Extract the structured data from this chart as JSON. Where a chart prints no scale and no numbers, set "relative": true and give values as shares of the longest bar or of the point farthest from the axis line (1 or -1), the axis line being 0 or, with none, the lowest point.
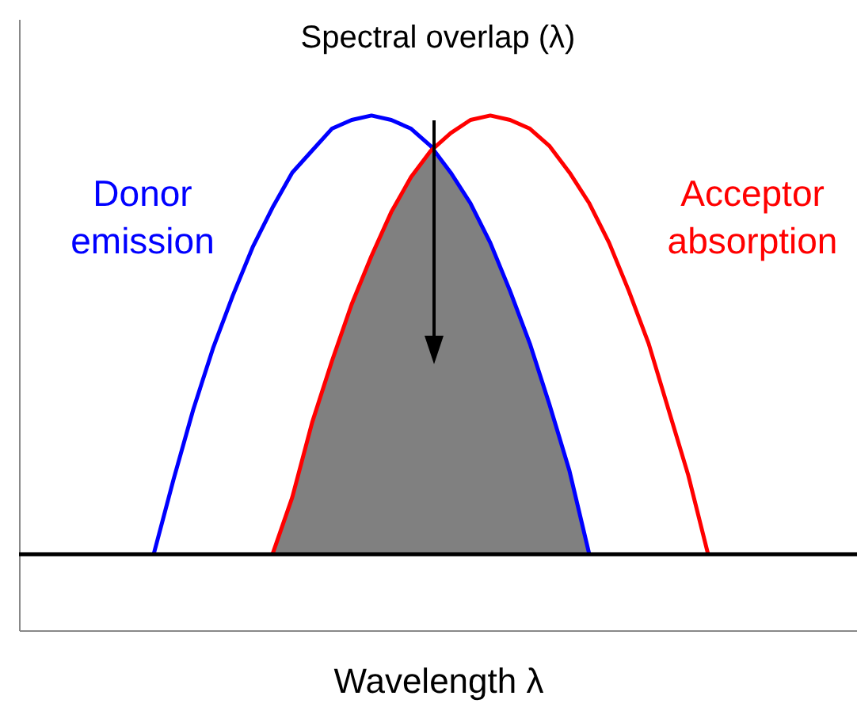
{
  "chart_data": {
    "type": "line",
    "title": "Spectral overlap (λ)",
    "xlabel": "Wavelength λ",
    "relative": true,
    "legend": false,
    "grid": false,
    "marker": "none",
    "line_style": "solid",
    "categories": [
      null,
      null,
      null,
      null,
      null,
      null,
      null,
      null,
      null,
      null,
      null,
      null,
      null,
      null,
      null,
      null,
      null,
      null,
      null,
      null,
      null,
      null,
      null,
      null,
      null,
      null,
      null,
      null,
      null
    ],
    "series": [
      {
        "type": "area",
        "color": "#808080",
        "values": [
          null,
          null,
          null,
          null,
          null,
          null,
          0,
          0.13,
          0.3,
          0.44,
          0.57,
          0.68,
          0.78,
          0.86,
          0.92,
          0.87,
          0.8,
          0.71,
          0.6,
          0.48,
          0.34,
          0.19,
          0,
          null,
          null,
          null,
          null,
          null,
          null
        ]
      },
      {
        "name": "Donor emission",
        "color": "#0000ff",
        "values": [
          0,
          0.17,
          0.33,
          0.47,
          0.59,
          0.7,
          0.79,
          0.87,
          0.92,
          0.97,
          0.99,
          1,
          0.99,
          0.97,
          0.93,
          0.87,
          0.8,
          0.71,
          0.6,
          0.48,
          0.34,
          0.19,
          0,
          null,
          null,
          null,
          null,
          null,
          null
        ]
      },
      {
        "name": "Acceptor absorption",
        "color": "#ff0000",
        "values": [
          null,
          null,
          null,
          null,
          null,
          null,
          0,
          0.13,
          0.3,
          0.44,
          0.57,
          0.68,
          0.78,
          0.86,
          0.92,
          0.96,
          0.99,
          1,
          0.99,
          0.97,
          0.93,
          0.87,
          0.8,
          0.71,
          0.6,
          0.48,
          0.33,
          0.18,
          0
        ]
      }
    ]
  }
}
